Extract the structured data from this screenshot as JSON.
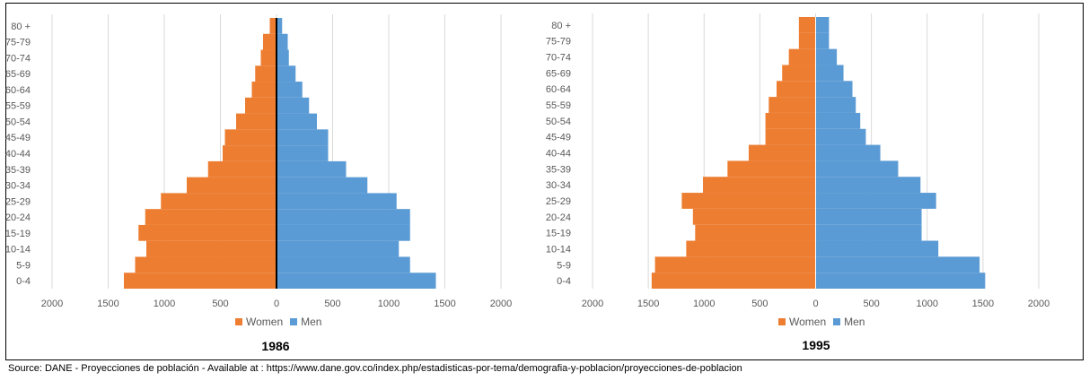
{
  "colors": {
    "women": "#ED7D31",
    "men": "#5B9BD5",
    "grid": "#D9D9D9",
    "axis": "#000000"
  },
  "source_text": "Source: DANE - Proyecciones de población - Available at : https://www.dane.gov.co/index.php/estadisticas-por-tema/demografia-y-poblacion/proyecciones-de-poblacion",
  "chart_data": [
    {
      "type": "bar",
      "orientation": "horizontal",
      "title": "1986",
      "categories": [
        "0-4",
        "5-9",
        "10-14",
        "15-19",
        "20-24",
        "25-29",
        "30-34",
        "35-39",
        "40-44",
        "45-49",
        "50-54",
        "55-59",
        "60-64",
        "65-69",
        "70-74",
        "75-79",
        "80 +"
      ],
      "series": [
        {
          "name": "Women",
          "values": [
            -1360,
            -1260,
            -1160,
            -1230,
            -1170,
            -1030,
            -800,
            -610,
            -480,
            -460,
            -360,
            -280,
            -220,
            -190,
            -140,
            -120,
            -60
          ]
        },
        {
          "name": "Men",
          "values": [
            1420,
            1190,
            1090,
            1190,
            1190,
            1070,
            810,
            620,
            460,
            460,
            360,
            290,
            230,
            170,
            110,
            100,
            50
          ]
        }
      ],
      "xlim": [
        -2000,
        2000
      ],
      "xticks": [
        "2000",
        "1500",
        "1000",
        "500",
        "0",
        "500",
        "1000",
        "1500",
        "2000"
      ],
      "legend": [
        "Women",
        "Men"
      ],
      "legend_position": "bottom",
      "grid": true
    },
    {
      "type": "bar",
      "orientation": "horizontal",
      "title": "1995",
      "categories": [
        "0-4",
        "5-9",
        "10-14",
        "15-19",
        "20-24",
        "25-29",
        "30-34",
        "35-39",
        "40-44",
        "45-49",
        "50-54",
        "55-59",
        "60-64",
        "65-69",
        "70-74",
        "75-79",
        "80 +"
      ],
      "series": [
        {
          "name": "Women",
          "values": [
            -1470,
            -1440,
            -1160,
            -1080,
            -1100,
            -1200,
            -1010,
            -790,
            -600,
            -450,
            -450,
            -420,
            -350,
            -300,
            -240,
            -150,
            -150
          ]
        },
        {
          "name": "Men",
          "values": [
            1520,
            1470,
            1100,
            950,
            950,
            1080,
            940,
            740,
            580,
            450,
            400,
            360,
            330,
            250,
            190,
            120,
            120
          ]
        }
      ],
      "xlim": [
        -2000,
        2000
      ],
      "xticks": [
        "2000",
        "1500",
        "1000",
        "500",
        "0",
        "500",
        "1000",
        "1500",
        "2000"
      ],
      "legend": [
        "Women",
        "Men"
      ],
      "legend_position": "bottom",
      "grid": true
    }
  ]
}
